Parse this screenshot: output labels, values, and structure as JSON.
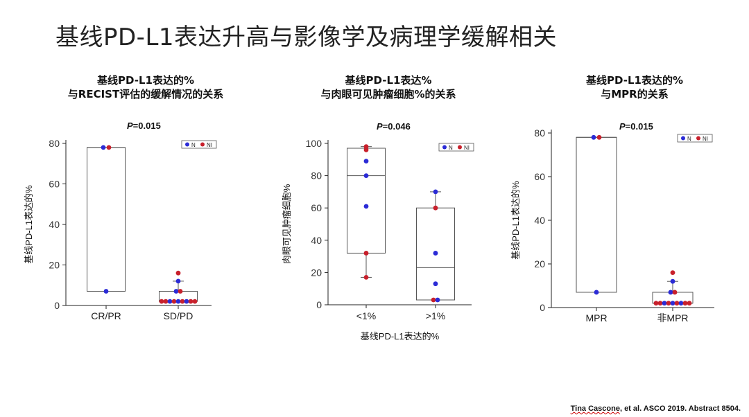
{
  "slide_title": "基线PD-L1表达升高与影像学及病理学缓解相关",
  "citation": {
    "name": "Tina Cascone",
    "rest": ", et al. ASCO 2019. Abstract 8504."
  },
  "colors": {
    "N": "#2b2bd6",
    "NI": "#c8202c",
    "box": "#555555"
  },
  "chart_data": [
    {
      "type": "box",
      "title_line1": "基线PD-L1表达的%",
      "title_line2": "与RECIST评估的缓解情况的关系",
      "pvalue_label": "P",
      "pvalue_value": "=0.015",
      "ylabel": "基线PD-L1表达的%",
      "xlabel": "",
      "ylim": [
        0,
        80
      ],
      "yticks": [
        0,
        20,
        40,
        60,
        80
      ],
      "legend": [
        "N",
        "NI"
      ],
      "categories": [
        "CR/PR",
        "SD/PD"
      ],
      "boxes": [
        {
          "q1": 7,
          "median": 78,
          "q3": 78,
          "whisker_low": 7,
          "whisker_high": 78
        },
        {
          "q1": 2,
          "median": 2,
          "q3": 7,
          "whisker_low": 2,
          "whisker_high": 12
        }
      ],
      "points": [
        [
          {
            "y": 78,
            "g": "N",
            "dx": -4
          },
          {
            "y": 78,
            "g": "NI",
            "dx": 4
          },
          {
            "y": 7,
            "g": "N",
            "dx": 0
          }
        ],
        [
          {
            "y": 16,
            "g": "NI",
            "dx": 0
          },
          {
            "y": 12,
            "g": "N",
            "dx": 0
          },
          {
            "y": 7,
            "g": "N",
            "dx": -3
          },
          {
            "y": 7,
            "g": "NI",
            "dx": 3
          },
          {
            "y": 2,
            "g": "NI",
            "dx": -24
          },
          {
            "y": 2,
            "g": "NI",
            "dx": -18
          },
          {
            "y": 2,
            "g": "N",
            "dx": -12
          },
          {
            "y": 2,
            "g": "NI",
            "dx": -6
          },
          {
            "y": 2,
            "g": "N",
            "dx": 0
          },
          {
            "y": 2,
            "g": "NI",
            "dx": 6
          },
          {
            "y": 2,
            "g": "N",
            "dx": 12
          },
          {
            "y": 2,
            "g": "NI",
            "dx": 18
          },
          {
            "y": 2,
            "g": "NI",
            "dx": 24
          }
        ]
      ]
    },
    {
      "type": "box",
      "title_line1": "基线PD-L1表达%",
      "title_line2": "与肉眼可见肿瘤细胞%的关系",
      "pvalue_label": "P",
      "pvalue_value": "=0.046",
      "ylabel": "肉眼可见肿瘤细胞%",
      "xlabel": "基线PD-L1表达的%",
      "ylim": [
        0,
        100
      ],
      "yticks": [
        0,
        20,
        40,
        60,
        80,
        100
      ],
      "legend": [
        "N",
        "NI"
      ],
      "categories": [
        "<1%",
        ">1%"
      ],
      "boxes": [
        {
          "q1": 32,
          "median": 80,
          "q3": 97,
          "whisker_low": 17,
          "whisker_high": 98
        },
        {
          "q1": 3,
          "median": 23,
          "q3": 60,
          "whisker_low": 3,
          "whisker_high": 70
        }
      ],
      "points": [
        [
          {
            "y": 98,
            "g": "NI",
            "dx": 0
          },
          {
            "y": 96,
            "g": "NI",
            "dx": 0
          },
          {
            "y": 89,
            "g": "N",
            "dx": 0
          },
          {
            "y": 80,
            "g": "N",
            "dx": 0
          },
          {
            "y": 61,
            "g": "N",
            "dx": 0
          },
          {
            "y": 32,
            "g": "NI",
            "dx": 0
          },
          {
            "y": 17,
            "g": "NI",
            "dx": 0
          }
        ],
        [
          {
            "y": 70,
            "g": "N",
            "dx": 0
          },
          {
            "y": 60,
            "g": "NI",
            "dx": 0
          },
          {
            "y": 32,
            "g": "N",
            "dx": 0
          },
          {
            "y": 13,
            "g": "N",
            "dx": 0
          },
          {
            "y": 3,
            "g": "NI",
            "dx": -3
          },
          {
            "y": 3,
            "g": "N",
            "dx": 3
          }
        ]
      ]
    },
    {
      "type": "box",
      "title_line1": "基线PD-L1表达的%",
      "title_line2": "与MPR的关系",
      "pvalue_label": "P",
      "pvalue_value": "=0.015",
      "ylabel": "基线PD-L1表达的%",
      "xlabel": "",
      "ylim": [
        0,
        80
      ],
      "yticks": [
        0,
        20,
        40,
        60,
        80
      ],
      "legend": [
        "N",
        "NI"
      ],
      "categories": [
        "MPR",
        "非MPR"
      ],
      "boxes": [
        {
          "q1": 7,
          "median": 78,
          "q3": 78,
          "whisker_low": 7,
          "whisker_high": 78
        },
        {
          "q1": 2,
          "median": 2,
          "q3": 7,
          "whisker_low": 2,
          "whisker_high": 12
        }
      ],
      "points": [
        [
          {
            "y": 78,
            "g": "N",
            "dx": -4
          },
          {
            "y": 78,
            "g": "NI",
            "dx": 4
          },
          {
            "y": 7,
            "g": "N",
            "dx": 0
          }
        ],
        [
          {
            "y": 16,
            "g": "NI",
            "dx": 0
          },
          {
            "y": 12,
            "g": "N",
            "dx": 0
          },
          {
            "y": 7,
            "g": "N",
            "dx": -3
          },
          {
            "y": 7,
            "g": "NI",
            "dx": 3
          },
          {
            "y": 2,
            "g": "NI",
            "dx": -24
          },
          {
            "y": 2,
            "g": "NI",
            "dx": -18
          },
          {
            "y": 2,
            "g": "N",
            "dx": -12
          },
          {
            "y": 2,
            "g": "NI",
            "dx": -6
          },
          {
            "y": 2,
            "g": "N",
            "dx": 0
          },
          {
            "y": 2,
            "g": "NI",
            "dx": 6
          },
          {
            "y": 2,
            "g": "N",
            "dx": 12
          },
          {
            "y": 2,
            "g": "NI",
            "dx": 18
          },
          {
            "y": 2,
            "g": "NI",
            "dx": 24
          }
        ]
      ]
    }
  ]
}
